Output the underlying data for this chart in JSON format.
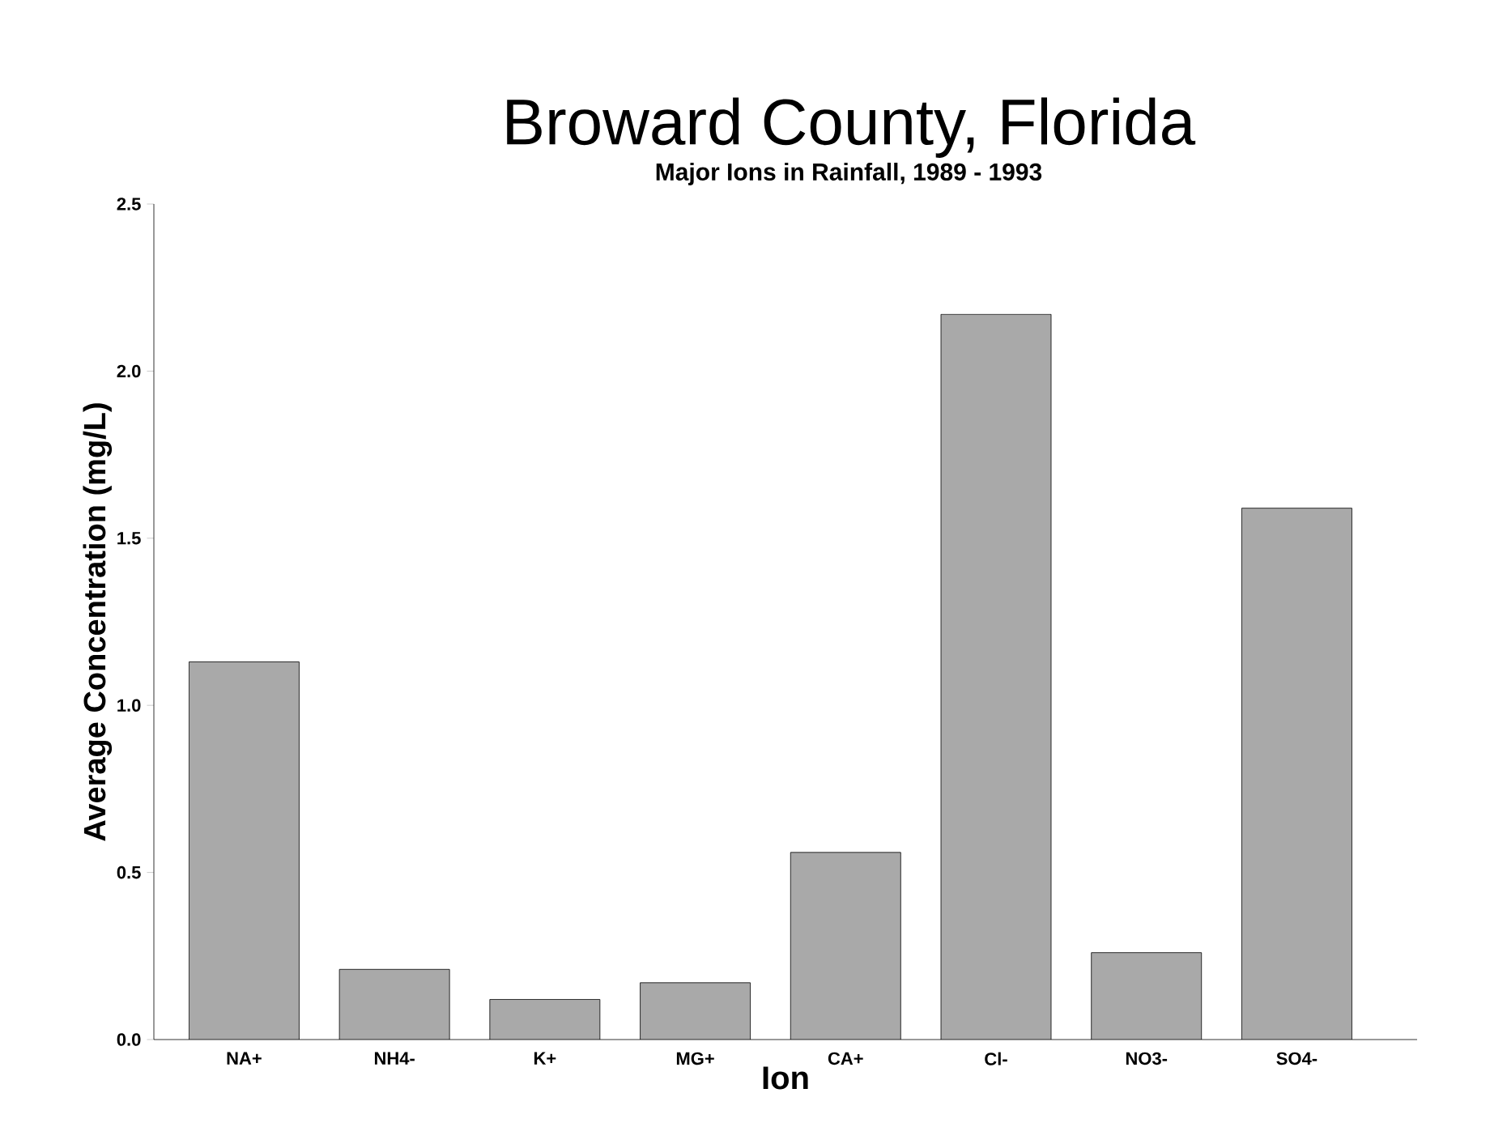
{
  "chart_data": {
    "type": "bar",
    "title": "Broward County, Florida",
    "subtitle": "Major Ions in Rainfall, 1989 - 1993",
    "xlabel": "Ion",
    "ylabel": "Average Concentration (mg/L)",
    "categories": [
      "NA+",
      "NH4-",
      "K+",
      "MG+",
      "CA+",
      "Cl-",
      "NO3-",
      "SO4-"
    ],
    "values": [
      1.13,
      0.21,
      0.12,
      0.17,
      0.56,
      2.17,
      0.26,
      1.59
    ],
    "color": "#a9a9a9",
    "ylim": [
      0,
      2.5
    ],
    "yticks": [
      {
        "value": 0,
        "label": "0.0"
      },
      {
        "value": 0.5,
        "label": "0.5"
      },
      {
        "value": 1,
        "label": "1.0"
      },
      {
        "value": 1.5,
        "label": "1.5"
      },
      {
        "value": 2,
        "label": "2.0"
      },
      {
        "value": 2.5,
        "label": "2.5"
      }
    ],
    "grid": false
  }
}
